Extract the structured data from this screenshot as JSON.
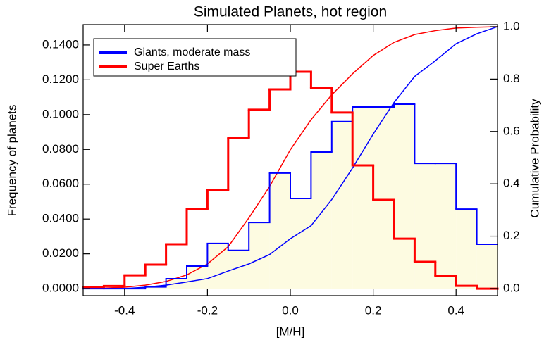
{
  "chart_data": {
    "type": "histogram",
    "title": "Simulated Planets, hot region",
    "xlabel": "[M/H]",
    "ylabel": "Frequency of planets",
    "y2label": "Cumulative Probability",
    "bins": [
      -0.5,
      -0.45,
      -0.4,
      -0.35,
      -0.3,
      -0.25,
      -0.2,
      -0.15,
      -0.1,
      -0.05,
      0.0,
      0.05,
      0.1,
      0.15,
      0.2,
      0.25,
      0.3,
      0.35,
      0.4,
      0.45,
      0.5
    ],
    "series": [
      {
        "name": "Giants, moderate mass",
        "color": "#0000ff",
        "fill": "#fdfbe1",
        "values": [
          0.0,
          0.0,
          0.0,
          0.001,
          0.0057,
          0.013,
          0.026,
          0.022,
          0.038,
          0.0664,
          0.0518,
          0.0785,
          0.096,
          0.1044,
          0.1044,
          0.106,
          0.072,
          0.072,
          0.0457,
          0.0255
        ]
      },
      {
        "name": "Super Earths",
        "color": "#ff0000",
        "values": [
          0.001,
          0.0015,
          0.0077,
          0.0138,
          0.0255,
          0.0457,
          0.0567,
          0.0866,
          0.1028,
          0.1145,
          0.1246,
          0.1154,
          0.1012,
          0.0708,
          0.051,
          0.0287,
          0.0154,
          0.0073,
          0.0016,
          0.0
        ]
      }
    ],
    "cumulative": {
      "x": [
        -0.5,
        -0.45,
        -0.4,
        -0.35,
        -0.3,
        -0.25,
        -0.2,
        -0.15,
        -0.1,
        -0.05,
        0.0,
        0.05,
        0.1,
        0.15,
        0.2,
        0.25,
        0.3,
        0.35,
        0.4,
        0.45,
        0.5
      ],
      "series": [
        {
          "color": "#0000ff",
          "axis": "y2",
          "values": [
            0.0,
            0.0,
            0.0,
            0.005,
            0.013,
            0.025,
            0.038,
            0.067,
            0.094,
            0.13,
            0.19,
            0.24,
            0.34,
            0.46,
            0.59,
            0.71,
            0.81,
            0.87,
            0.935,
            0.973,
            1.0
          ]
        },
        {
          "color": "#ff0000",
          "axis": "y2",
          "values": [
            0.0,
            0.002,
            0.005,
            0.013,
            0.027,
            0.052,
            0.094,
            0.16,
            0.27,
            0.39,
            0.53,
            0.645,
            0.74,
            0.82,
            0.89,
            0.94,
            0.97,
            0.985,
            0.995,
            0.998,
            1.0
          ]
        }
      ]
    },
    "xlim": [
      -0.5,
      0.5
    ],
    "xticks": [
      -0.4,
      -0.2,
      {
        "value": 0,
        "label": "0.0"
      },
      0.2,
      0.4
    ],
    "ylim": [
      -0.004,
      0.1517
    ],
    "yticks": [
      {
        "value": 0,
        "label": "0.0000"
      },
      {
        "value": 0.02,
        "label": "0.0200"
      },
      {
        "value": 0.04,
        "label": "0.0400"
      },
      {
        "value": 0.06,
        "label": "0.0600"
      },
      {
        "value": 0.08,
        "label": "0.0800"
      },
      {
        "value": 0.1,
        "label": "0.1000"
      },
      {
        "value": 0.12,
        "label": "0.1200"
      },
      {
        "value": 0.14,
        "label": "0.1400"
      }
    ],
    "y2lim": [
      -0.027,
      1.008
    ],
    "y2ticks": [
      {
        "value": 0,
        "label": "0.0"
      },
      0.2,
      0.4,
      0.6,
      0.8,
      {
        "value": 1,
        "label": "1.0"
      }
    ],
    "legend": "upper left"
  }
}
